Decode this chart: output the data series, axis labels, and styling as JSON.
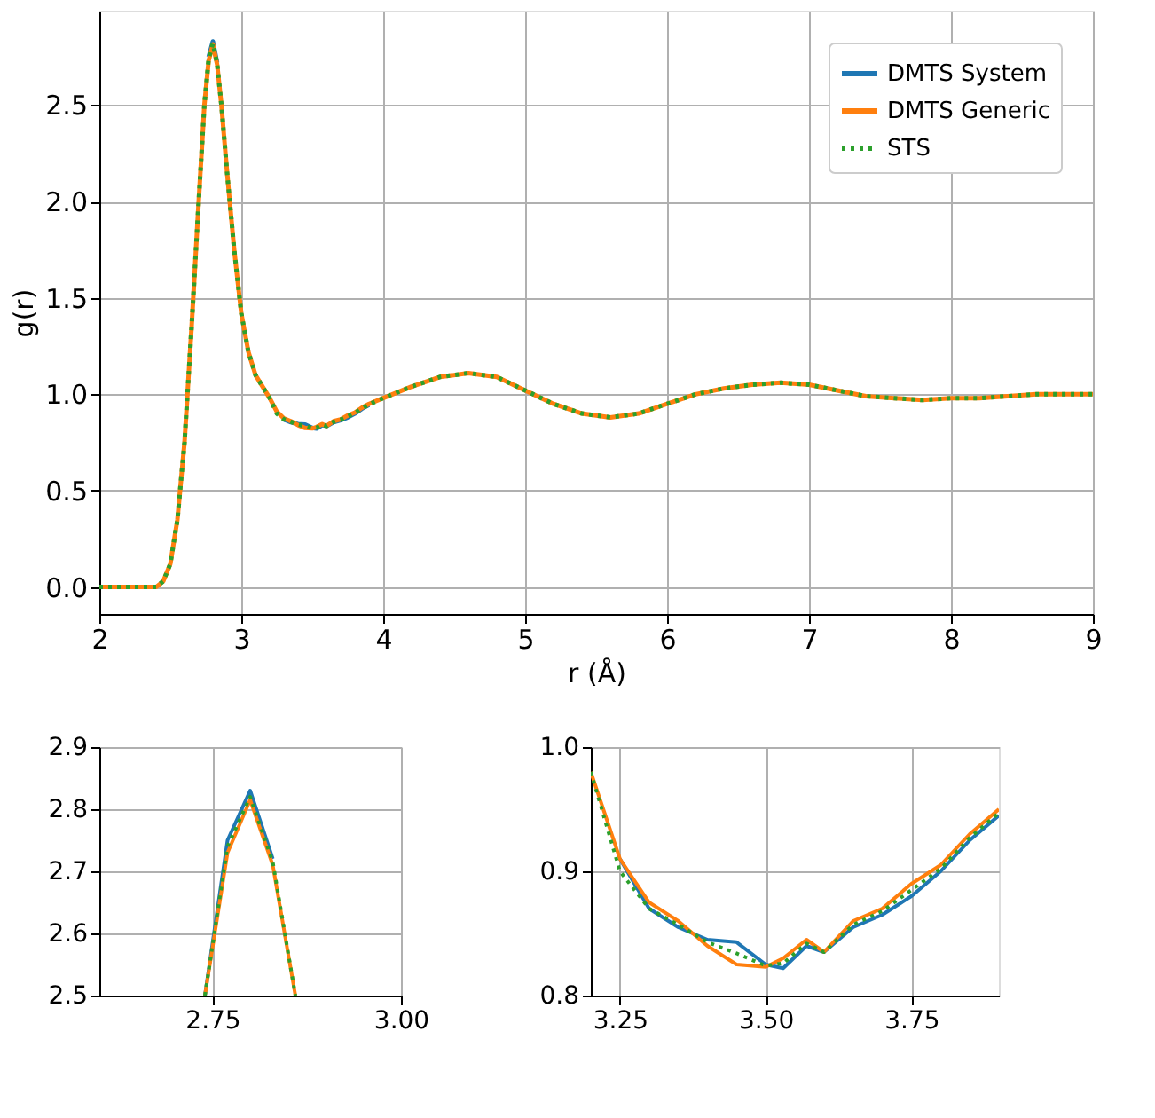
{
  "chart_data": [
    {
      "type": "line",
      "xlabel": "r (Å)",
      "ylabel": "g(r)",
      "xlim": [
        2,
        9
      ],
      "ylim": [
        -0.14,
        2.99
      ],
      "xticks": [
        2,
        3,
        4,
        5,
        6,
        7,
        8,
        9
      ],
      "yticks": [
        {
          "value": 0,
          "label": "0.0"
        },
        {
          "value": 0.5,
          "label": "0.5"
        },
        {
          "value": 1,
          "label": "1.0"
        },
        {
          "value": 1.5,
          "label": "1.5"
        },
        {
          "value": 2,
          "label": "2.0"
        },
        {
          "value": 2.5,
          "label": "2.5"
        }
      ],
      "grid": true,
      "legend": "top right",
      "x": [
        2.0,
        2.2,
        2.4,
        2.45,
        2.5,
        2.55,
        2.6,
        2.65,
        2.7,
        2.74,
        2.77,
        2.8,
        2.83,
        2.86,
        2.9,
        2.95,
        3.0,
        3.05,
        3.1,
        3.2,
        3.25,
        3.3,
        3.35,
        3.4,
        3.45,
        3.5,
        3.53,
        3.57,
        3.6,
        3.65,
        3.7,
        3.75,
        3.8,
        3.85,
        3.9,
        4.0,
        4.2,
        4.4,
        4.6,
        4.8,
        5.0,
        5.2,
        5.4,
        5.6,
        5.8,
        6.0,
        6.2,
        6.4,
        6.6,
        6.8,
        7.0,
        7.2,
        7.4,
        7.6,
        7.8,
        8.0,
        8.2,
        8.4,
        8.6,
        8.8,
        9.0
      ],
      "series": [
        {
          "name": "DMTS System",
          "color": "#1f77b4",
          "line_style": "solid",
          "values": [
            null,
            null,
            null,
            null,
            null,
            null,
            null,
            null,
            null,
            null,
            2.75,
            2.83,
            2.72,
            null,
            null,
            null,
            null,
            null,
            null,
            null,
            null,
            0.87,
            0.855,
            0.845,
            0.843,
            0.825,
            0.822,
            0.84,
            0.835,
            0.855,
            0.865,
            0.88,
            0.9,
            0.925,
            0.945,
            null,
            null,
            null,
            null,
            null,
            null,
            null,
            null,
            null,
            null,
            null,
            null,
            null,
            null,
            null,
            null,
            null,
            null,
            null,
            null,
            null,
            null,
            null,
            null,
            null,
            null
          ]
        },
        {
          "name": "DMTS Generic",
          "color": "#ff7f0e",
          "line_style": "solid",
          "values": [
            0,
            0,
            0,
            0.03,
            0.12,
            0.35,
            0.75,
            1.35,
            2.0,
            2.5,
            2.73,
            2.815,
            2.71,
            2.5,
            2.15,
            1.75,
            1.42,
            1.22,
            1.1,
            0.98,
            0.91,
            0.875,
            0.86,
            0.84,
            0.825,
            0.823,
            0.83,
            0.845,
            0.835,
            0.86,
            0.87,
            0.89,
            0.905,
            0.93,
            0.95,
            0.98,
            1.04,
            1.09,
            1.11,
            1.09,
            1.02,
            0.95,
            0.9,
            0.88,
            0.9,
            0.95,
            1.0,
            1.03,
            1.05,
            1.06,
            1.05,
            1.02,
            0.99,
            0.98,
            0.97,
            0.98,
            0.98,
            0.99,
            1.0,
            1.0,
            1.0
          ]
        },
        {
          "name": "STS",
          "color": "#2ca02c",
          "line_style": "dotted",
          "values": [
            0,
            0,
            0,
            0.03,
            0.12,
            0.35,
            0.75,
            1.35,
            2.0,
            2.5,
            2.74,
            2.82,
            2.715,
            2.5,
            2.15,
            1.75,
            1.42,
            1.22,
            1.1,
            0.98,
            0.9,
            0.87,
            0.857,
            0.843,
            0.834,
            0.824,
            0.826,
            0.842,
            0.835,
            0.857,
            0.868,
            0.885,
            0.902,
            0.927,
            0.947,
            0.98,
            1.04,
            1.09,
            1.11,
            1.09,
            1.02,
            0.95,
            0.9,
            0.88,
            0.9,
            0.95,
            1.0,
            1.03,
            1.05,
            1.06,
            1.05,
            1.02,
            0.99,
            0.98,
            0.97,
            0.98,
            0.98,
            0.99,
            1.0,
            1.0,
            1.0
          ]
        }
      ]
    },
    {
      "type": "line",
      "xlim": [
        2.6,
        3.0
      ],
      "ylim": [
        2.5,
        2.9
      ],
      "xticks": [
        2.75,
        {
          "value": 3,
          "label": "3.00"
        }
      ],
      "yticks": [
        2.5,
        2.6,
        2.7,
        2.8,
        2.9
      ],
      "grid": true,
      "x": [
        2.74,
        2.77,
        2.8,
        2.83,
        2.86
      ],
      "series": [
        {
          "color": "#1f77b4",
          "line_style": "solid",
          "values": [
            2.5,
            2.75,
            2.83,
            2.72,
            null
          ]
        },
        {
          "color": "#ff7f0e",
          "line_style": "solid",
          "values": [
            2.5,
            2.73,
            2.815,
            2.71,
            2.5
          ]
        },
        {
          "color": "#2ca02c",
          "line_style": "dotted",
          "values": [
            2.5,
            2.74,
            2.82,
            2.715,
            2.5
          ]
        }
      ]
    },
    {
      "type": "line",
      "xlim": [
        3.2,
        3.9
      ],
      "ylim": [
        0.8,
        1.0
      ],
      "xticks": [
        3.25,
        {
          "value": 3.5,
          "label": "3.50"
        },
        3.75
      ],
      "yticks": [
        0.8,
        0.9,
        {
          "value": 1,
          "label": "1.0"
        }
      ],
      "grid": true,
      "x": [
        3.2,
        3.25,
        3.3,
        3.35,
        3.4,
        3.45,
        3.5,
        3.53,
        3.57,
        3.6,
        3.65,
        3.7,
        3.75,
        3.8,
        3.85,
        3.9
      ],
      "series": [
        {
          "color": "#1f77b4",
          "line_style": "solid",
          "values": [
            null,
            0.91,
            0.87,
            0.855,
            0.845,
            0.843,
            0.825,
            0.822,
            0.84,
            0.835,
            0.855,
            0.865,
            0.88,
            0.9,
            0.925,
            0.945
          ]
        },
        {
          "color": "#ff7f0e",
          "line_style": "solid",
          "values": [
            0.98,
            0.91,
            0.875,
            0.86,
            0.84,
            0.825,
            0.823,
            0.83,
            0.845,
            0.835,
            0.86,
            0.87,
            0.89,
            0.905,
            0.93,
            0.95
          ]
        },
        {
          "color": "#2ca02c",
          "line_style": "dotted",
          "values": [
            0.98,
            0.9,
            0.87,
            0.857,
            0.843,
            0.834,
            0.824,
            0.826,
            0.842,
            0.835,
            0.857,
            0.868,
            0.885,
            0.902,
            0.927,
            0.947
          ]
        }
      ]
    }
  ]
}
